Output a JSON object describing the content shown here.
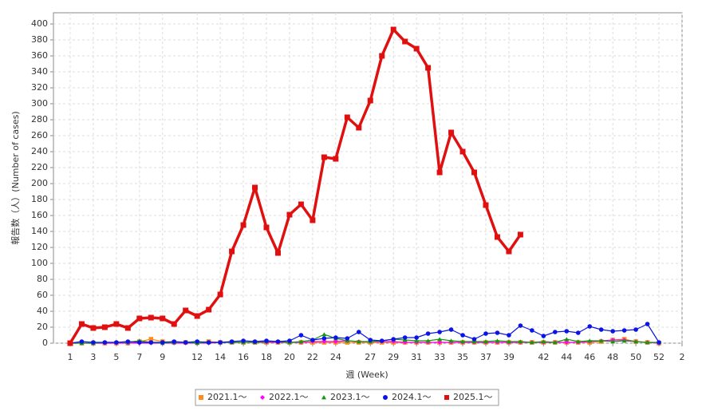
{
  "chart_data": {
    "type": "line",
    "x_label": "週 (Week)",
    "y_label": "報告数（人）(Number of cases)",
    "x": [
      1,
      2,
      3,
      4,
      5,
      6,
      7,
      8,
      9,
      10,
      11,
      12,
      13,
      14,
      15,
      16,
      17,
      18,
      19,
      20,
      21,
      22,
      23,
      24,
      25,
      26,
      27,
      28,
      29,
      30,
      31,
      32,
      33,
      34,
      35,
      36,
      37,
      38,
      39,
      40,
      41,
      42,
      43,
      44,
      45,
      46,
      47,
      48,
      49,
      50,
      51,
      52
    ],
    "xlim": [
      -0.45,
      54
    ],
    "xticks": [
      1,
      3,
      5,
      7,
      9,
      12,
      14,
      16,
      18,
      20,
      22,
      24,
      27,
      29,
      31,
      33,
      35,
      37,
      39,
      42,
      44,
      46,
      48,
      50,
      52,
      {
        "value": 54,
        "label": "2"
      }
    ],
    "ylim": [
      0,
      414
    ],
    "yticks": [
      0,
      20,
      40,
      60,
      80,
      100,
      120,
      140,
      160,
      180,
      200,
      220,
      240,
      260,
      280,
      300,
      320,
      340,
      360,
      380,
      400
    ],
    "grid": true,
    "legend": "bottom",
    "series": [
      {
        "name": "2021.1～",
        "color": "#ff8c1a",
        "marker": "square",
        "values": [
          0,
          0,
          0,
          0,
          0,
          0,
          2,
          5,
          2,
          1,
          1,
          1,
          2,
          1,
          1,
          1,
          1,
          1,
          1,
          1,
          1,
          1,
          1,
          1,
          1,
          1,
          1,
          1,
          1,
          1,
          1,
          1,
          1,
          1,
          1,
          1,
          1,
          1,
          1,
          1,
          1,
          1,
          1,
          1,
          1,
          1,
          2,
          4,
          5,
          2,
          1,
          0
        ]
      },
      {
        "name": "2022.1～",
        "color": "#ff00ff",
        "marker": "diamond",
        "values": [
          0,
          0,
          0,
          0,
          0,
          0,
          0,
          0,
          0,
          0,
          0,
          0,
          0,
          1,
          1,
          1,
          1,
          1,
          1,
          1,
          1,
          2,
          2,
          2,
          3,
          2,
          2,
          2,
          2,
          1,
          1,
          1,
          1,
          1,
          1,
          1,
          1,
          1,
          1,
          1,
          1,
          1,
          1,
          1,
          1,
          2,
          3,
          4,
          4,
          2,
          1,
          0
        ]
      },
      {
        "name": "2023.1～",
        "color": "#109a10",
        "marker": "triangle",
        "values": [
          0,
          0,
          0,
          1,
          1,
          1,
          3,
          1,
          0,
          1,
          1,
          0,
          1,
          1,
          1,
          1,
          1,
          2,
          2,
          1,
          2,
          4,
          11,
          6,
          3,
          2,
          2,
          3,
          5,
          4,
          3,
          3,
          5,
          3,
          2,
          2,
          2,
          3,
          2,
          2,
          1,
          2,
          1,
          5,
          2,
          3,
          3,
          2,
          3,
          2,
          1,
          1
        ]
      },
      {
        "name": "2024.1～",
        "color": "#0a14e6",
        "marker": "circle",
        "values": [
          0,
          2,
          1,
          1,
          1,
          2,
          1,
          1,
          1,
          2,
          1,
          2,
          1,
          1,
          2,
          3,
          2,
          3,
          2,
          3,
          10,
          4,
          6,
          7,
          6,
          14,
          4,
          3,
          5,
          7,
          7,
          12,
          14,
          17,
          10,
          5,
          12,
          13,
          10,
          22,
          16,
          9,
          14,
          15,
          13,
          21,
          17,
          15,
          16,
          17,
          24,
          1
        ]
      },
      {
        "name": "2025.1～",
        "color": "#e01010",
        "marker": "square",
        "line_width": 3.5,
        "values": [
          0,
          24,
          19,
          20,
          24,
          19,
          31,
          32,
          31,
          24,
          41,
          34,
          42,
          61,
          115,
          148,
          195,
          145,
          113,
          161,
          174,
          154,
          233,
          231,
          283,
          270,
          304,
          360,
          393,
          378,
          369,
          345,
          214,
          264,
          240,
          214,
          173,
          133,
          115,
          136,
          null,
          null,
          null,
          null,
          null,
          null,
          null,
          null,
          null,
          null,
          null,
          null
        ]
      }
    ]
  }
}
